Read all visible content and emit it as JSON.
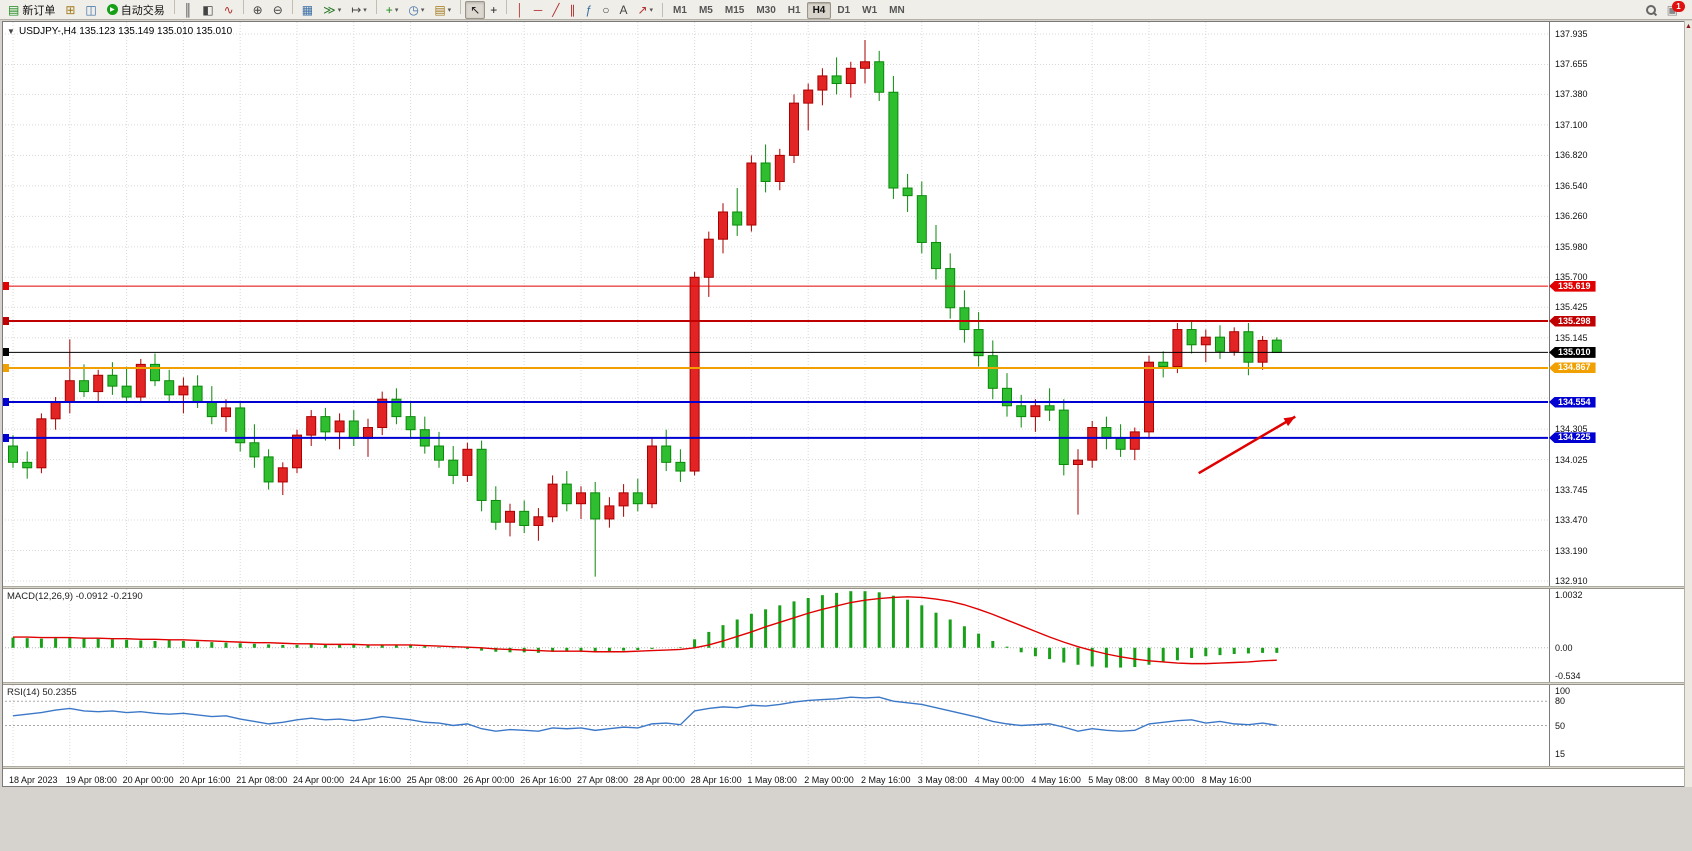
{
  "chart": {
    "title": "USDJPY-,H4  135.123 135.149 135.010 135.010"
  },
  "toolbar": {
    "new_order_label": "新订单",
    "autotrading_label": "自动交易",
    "notification_badge": "1",
    "timeframes": [
      "M1",
      "M5",
      "M15",
      "M30",
      "H1",
      "H4",
      "D1",
      "W1",
      "MN"
    ],
    "active_timeframe": "H4",
    "icons_left": [
      {
        "name": "new-chart",
        "glyph": "⊞",
        "color": "#a07818"
      },
      {
        "name": "profiles",
        "glyph": "◫",
        "color": "#3a6ea5"
      }
    ],
    "icons_main": [
      {
        "name": "bar-chart",
        "glyph": "║",
        "color": "#444444",
        "sep_before": true
      },
      {
        "name": "candlestick-chart",
        "glyph": "◧",
        "color": "#444444"
      },
      {
        "name": "line-chart",
        "glyph": "∿",
        "color": "#b03030"
      },
      {
        "name": "zoom-in",
        "glyph": "⊕",
        "color": "#444444",
        "sep_before": true
      },
      {
        "name": "zoom-out",
        "glyph": "⊖",
        "color": "#444444"
      },
      {
        "name": "tile-windows",
        "glyph": "▦",
        "color": "#3a6ea5",
        "sep_before": true
      },
      {
        "name": "auto-scroll",
        "glyph": "≫",
        "color": "#2a7a2a",
        "dropdown": true
      },
      {
        "name": "chart-shift",
        "glyph": "↦",
        "color": "#444444",
        "dropdown": true
      },
      {
        "name": "indicators",
        "glyph": "+",
        "color": "#1a8a1a",
        "dropdown": true,
        "sep_before": true
      },
      {
        "name": "periods",
        "glyph": "◷",
        "color": "#3a6ea5",
        "dropdown": true
      },
      {
        "name": "templates",
        "glyph": "▤",
        "color": "#a07818",
        "dropdown": true
      },
      {
        "name": "cursor",
        "glyph": "↖",
        "color": "#222222",
        "sep_before": true,
        "active": true
      },
      {
        "name": "crosshair",
        "glyph": "+",
        "color": "#222222"
      },
      {
        "name": "vertical-line",
        "glyph": "│",
        "color": "#b03030",
        "sep_before": true
      },
      {
        "name": "horizontal-line",
        "glyph": "─",
        "color": "#b03030"
      },
      {
        "name": "trendline",
        "glyph": "╱",
        "color": "#b03030"
      },
      {
        "name": "equidistant-channel",
        "glyph": "∥",
        "color": "#b03030"
      },
      {
        "name": "fibonacci",
        "glyph": "ƒ",
        "color": "#3a6ea5"
      },
      {
        "name": "shapes",
        "glyph": "○",
        "color": "#444444"
      },
      {
        "name": "text",
        "glyph": "A",
        "color": "#444444"
      },
      {
        "name": "arrows",
        "glyph": "↗",
        "color": "#b03030",
        "dropdown": true
      }
    ]
  },
  "chart_data": {
    "type": "candlestick",
    "symbol": "USDJPY-",
    "timeframe": "H4",
    "quote_line": "135.123 135.149 135.010 135.010",
    "bull_color": "#e32424",
    "bear_color": "#2fbe2f",
    "price_axis_labels": [
      "137.935",
      "137.655",
      "137.380",
      "137.100",
      "136.820",
      "136.540",
      "136.260",
      "135.980",
      "135.700",
      "135.425",
      "135.145",
      "134.305",
      "134.025",
      "133.745",
      "133.470",
      "133.190",
      "132.910"
    ],
    "hlines": [
      {
        "price": 135.619,
        "label": "135.619",
        "color": "#e00000",
        "width": 1
      },
      {
        "price": 135.298,
        "label": "135.298",
        "color": "#c00000",
        "width": 2
      },
      {
        "price": 135.01,
        "label": "135.010",
        "color": "#000000",
        "width": 1
      },
      {
        "price": 134.867,
        "label": "134.867",
        "color": "#f0a000",
        "width": 2
      },
      {
        "price": 134.554,
        "label": "134.554",
        "color": "#0000d0",
        "width": 2
      },
      {
        "price": 134.225,
        "label": "134.225",
        "color": "#0000d0",
        "width": 2
      }
    ],
    "bid_price": "135.010",
    "arrow": {
      "color": "#e00000",
      "from": {
        "bar": 83.5,
        "price": 133.9
      },
      "to": {
        "bar": 90.3,
        "price": 134.42
      }
    },
    "time_labels": [
      "18 Apr 2023",
      "19 Apr 08:00",
      "20 Apr 00:00",
      "20 Apr 16:00",
      "21 Apr 08:00",
      "24 Apr 00:00",
      "24 Apr 16:00",
      "25 Apr 08:00",
      "26 Apr 00:00",
      "26 Apr 16:00",
      "27 Apr 08:00",
      "28 Apr 00:00",
      "28 Apr 16:00",
      "1 May 08:00",
      "2 May 00:00",
      "2 May 16:00",
      "3 May 08:00",
      "4 May 00:00",
      "4 May 16:00",
      "5 May 08:00",
      "8 May 00:00",
      "8 May 16:00"
    ],
    "candles_ohlc": [
      [
        134.15,
        134.25,
        133.95,
        134.0
      ],
      [
        134.0,
        134.1,
        133.85,
        133.95
      ],
      [
        133.95,
        134.45,
        133.9,
        134.4
      ],
      [
        134.4,
        134.6,
        134.3,
        134.55
      ],
      [
        134.55,
        135.13,
        134.45,
        134.75
      ],
      [
        134.75,
        134.9,
        134.6,
        134.65
      ],
      [
        134.65,
        134.85,
        134.55,
        134.8
      ],
      [
        134.8,
        134.92,
        134.62,
        134.7
      ],
      [
        134.7,
        134.88,
        134.55,
        134.6
      ],
      [
        134.6,
        134.95,
        134.55,
        134.9
      ],
      [
        134.9,
        135.0,
        134.7,
        134.75
      ],
      [
        134.75,
        134.85,
        134.55,
        134.62
      ],
      [
        134.62,
        134.78,
        134.45,
        134.7
      ],
      [
        134.7,
        134.8,
        134.5,
        134.55
      ],
      [
        134.55,
        134.7,
        134.35,
        134.42
      ],
      [
        134.42,
        134.58,
        134.28,
        134.5
      ],
      [
        134.5,
        134.55,
        134.1,
        134.18
      ],
      [
        134.18,
        134.35,
        133.95,
        134.05
      ],
      [
        134.05,
        134.12,
        133.75,
        133.82
      ],
      [
        133.82,
        134.0,
        133.7,
        133.95
      ],
      [
        133.95,
        134.3,
        133.9,
        134.25
      ],
      [
        134.25,
        134.48,
        134.15,
        134.42
      ],
      [
        134.42,
        134.5,
        134.2,
        134.28
      ],
      [
        134.28,
        134.45,
        134.12,
        134.38
      ],
      [
        134.38,
        134.48,
        134.15,
        134.22
      ],
      [
        134.22,
        134.4,
        134.05,
        134.32
      ],
      [
        134.32,
        134.65,
        134.25,
        134.58
      ],
      [
        134.58,
        134.68,
        134.35,
        134.42
      ],
      [
        134.42,
        134.55,
        134.22,
        134.3
      ],
      [
        134.3,
        134.42,
        134.08,
        134.15
      ],
      [
        134.15,
        134.28,
        133.95,
        134.02
      ],
      [
        134.02,
        134.15,
        133.8,
        133.88
      ],
      [
        133.88,
        134.18,
        133.82,
        134.12
      ],
      [
        134.12,
        134.2,
        133.55,
        133.65
      ],
      [
        133.65,
        133.78,
        133.38,
        133.45
      ],
      [
        133.45,
        133.62,
        133.32,
        133.55
      ],
      [
        133.55,
        133.65,
        133.35,
        133.42
      ],
      [
        133.42,
        133.58,
        133.28,
        133.5
      ],
      [
        133.5,
        133.88,
        133.45,
        133.8
      ],
      [
        133.8,
        133.92,
        133.55,
        133.62
      ],
      [
        133.62,
        133.78,
        133.48,
        133.72
      ],
      [
        133.72,
        133.82,
        132.95,
        133.48
      ],
      [
        133.48,
        133.68,
        133.4,
        133.6
      ],
      [
        133.6,
        133.8,
        133.5,
        133.72
      ],
      [
        133.72,
        133.85,
        133.55,
        133.62
      ],
      [
        133.62,
        134.22,
        133.58,
        134.15
      ],
      [
        134.15,
        134.3,
        133.92,
        134.0
      ],
      [
        134.0,
        134.12,
        133.82,
        133.92
      ],
      [
        133.92,
        135.75,
        133.88,
        135.7
      ],
      [
        135.7,
        136.12,
        135.52,
        136.05
      ],
      [
        136.05,
        136.38,
        135.92,
        136.3
      ],
      [
        136.3,
        136.52,
        136.08,
        136.18
      ],
      [
        136.18,
        136.82,
        136.12,
        136.75
      ],
      [
        136.75,
        136.92,
        136.48,
        136.58
      ],
      [
        136.58,
        136.88,
        136.5,
        136.82
      ],
      [
        136.82,
        137.38,
        136.75,
        137.3
      ],
      [
        137.3,
        137.48,
        137.05,
        137.42
      ],
      [
        137.42,
        137.62,
        137.28,
        137.55
      ],
      [
        137.55,
        137.72,
        137.38,
        137.48
      ],
      [
        137.48,
        137.68,
        137.35,
        137.62
      ],
      [
        137.62,
        137.88,
        137.48,
        137.68
      ],
      [
        137.68,
        137.78,
        137.32,
        137.4
      ],
      [
        137.4,
        137.55,
        136.42,
        136.52
      ],
      [
        136.52,
        136.65,
        136.3,
        136.45
      ],
      [
        136.45,
        136.58,
        135.92,
        136.02
      ],
      [
        136.02,
        136.18,
        135.68,
        135.78
      ],
      [
        135.78,
        135.92,
        135.32,
        135.42
      ],
      [
        135.42,
        135.58,
        135.1,
        135.22
      ],
      [
        135.22,
        135.38,
        134.88,
        134.98
      ],
      [
        134.98,
        135.12,
        134.58,
        134.68
      ],
      [
        134.68,
        134.82,
        134.42,
        134.52
      ],
      [
        134.52,
        134.62,
        134.32,
        134.42
      ],
      [
        134.42,
        134.58,
        134.28,
        134.52
      ],
      [
        134.52,
        134.68,
        134.38,
        134.48
      ],
      [
        134.48,
        134.58,
        133.88,
        133.98
      ],
      [
        133.98,
        134.12,
        133.52,
        134.02
      ],
      [
        134.02,
        134.38,
        133.95,
        134.32
      ],
      [
        134.32,
        134.42,
        134.12,
        134.22
      ],
      [
        134.22,
        134.35,
        134.05,
        134.12
      ],
      [
        134.12,
        134.32,
        134.02,
        134.28
      ],
      [
        134.28,
        134.98,
        134.22,
        134.92
      ],
      [
        134.92,
        135.02,
        134.78,
        134.88
      ],
      [
        134.88,
        135.28,
        134.82,
        135.22
      ],
      [
        135.22,
        135.3,
        135.0,
        135.08
      ],
      [
        135.08,
        135.22,
        134.92,
        135.15
      ],
      [
        135.15,
        135.26,
        134.95,
        135.02
      ],
      [
        135.02,
        135.24,
        134.98,
        135.2
      ],
      [
        135.2,
        135.28,
        134.8,
        134.92
      ],
      [
        134.92,
        135.16,
        134.85,
        135.12
      ],
      [
        135.123,
        135.149,
        135.01,
        135.01
      ]
    ],
    "macd": {
      "label": "MACD(12,26,9) -0.0912 -0.2190",
      "hist_color": "#18a018",
      "signal_color": "#e00000",
      "max": 1.0032,
      "min": -0.534,
      "axis_labels": [
        "1.0032",
        "0.00",
        "-0.534"
      ],
      "histogram": [
        0.18,
        0.17,
        0.16,
        0.17,
        0.18,
        0.17,
        0.16,
        0.15,
        0.14,
        0.13,
        0.12,
        0.13,
        0.12,
        0.11,
        0.1,
        0.09,
        0.08,
        0.07,
        0.06,
        0.05,
        0.05,
        0.06,
        0.06,
        0.05,
        0.05,
        0.04,
        0.05,
        0.05,
        0.04,
        0.03,
        0.01,
        -0.01,
        -0.02,
        -0.05,
        -0.07,
        -0.08,
        -0.08,
        -0.09,
        -0.07,
        -0.06,
        -0.06,
        -0.08,
        -0.07,
        -0.05,
        -0.04,
        -0.02,
        0.0,
        0.01,
        0.15,
        0.28,
        0.4,
        0.5,
        0.6,
        0.68,
        0.75,
        0.82,
        0.88,
        0.93,
        0.97,
        1.0,
        1.0,
        0.98,
        0.92,
        0.85,
        0.75,
        0.62,
        0.5,
        0.38,
        0.25,
        0.12,
        0.02,
        -0.08,
        -0.15,
        -0.2,
        -0.26,
        -0.3,
        -0.33,
        -0.35,
        -0.35,
        -0.34,
        -0.3,
        -0.26,
        -0.22,
        -0.18,
        -0.15,
        -0.13,
        -0.11,
        -0.1,
        -0.09,
        -0.09
      ],
      "signal": [
        0.19,
        0.19,
        0.18,
        0.18,
        0.18,
        0.17,
        0.17,
        0.16,
        0.16,
        0.15,
        0.15,
        0.14,
        0.14,
        0.13,
        0.12,
        0.11,
        0.1,
        0.09,
        0.09,
        0.08,
        0.07,
        0.07,
        0.06,
        0.06,
        0.06,
        0.05,
        0.05,
        0.05,
        0.05,
        0.04,
        0.03,
        0.02,
        0.01,
        0.0,
        -0.02,
        -0.03,
        -0.04,
        -0.05,
        -0.06,
        -0.06,
        -0.06,
        -0.07,
        -0.07,
        -0.07,
        -0.06,
        -0.05,
        -0.04,
        -0.03,
        0.0,
        0.05,
        0.12,
        0.2,
        0.28,
        0.37,
        0.45,
        0.53,
        0.61,
        0.68,
        0.74,
        0.8,
        0.84,
        0.87,
        0.89,
        0.9,
        0.89,
        0.86,
        0.82,
        0.76,
        0.68,
        0.59,
        0.49,
        0.39,
        0.29,
        0.19,
        0.1,
        0.02,
        -0.05,
        -0.11,
        -0.16,
        -0.2,
        -0.23,
        -0.25,
        -0.27,
        -0.28,
        -0.28,
        -0.27,
        -0.26,
        -0.25,
        -0.23,
        -0.22
      ]
    },
    "rsi": {
      "label": "RSI(14) 50.2355",
      "line_color": "#3c78c8",
      "max": 100,
      "min": 0,
      "levels": [
        80,
        50
      ],
      "axis_labels": [
        "100",
        "80",
        "50",
        "15"
      ],
      "values": [
        62,
        64,
        66,
        69,
        71,
        68,
        67,
        68,
        66,
        67,
        65,
        64,
        65,
        63,
        61,
        62,
        58,
        55,
        52,
        54,
        57,
        59,
        57,
        58,
        56,
        58,
        61,
        59,
        57,
        54,
        53,
        50,
        52,
        46,
        43,
        45,
        44,
        43,
        47,
        46,
        47,
        44,
        46,
        48,
        47,
        52,
        53,
        51,
        68,
        71,
        73,
        72,
        75,
        74,
        76,
        79,
        81,
        82,
        83,
        85,
        84,
        85,
        80,
        78,
        76,
        72,
        68,
        64,
        60,
        55,
        52,
        50,
        51,
        52,
        48,
        43,
        46,
        44,
        43,
        44,
        52,
        54,
        56,
        57,
        53,
        55,
        52,
        51,
        53,
        50.24
      ]
    }
  }
}
